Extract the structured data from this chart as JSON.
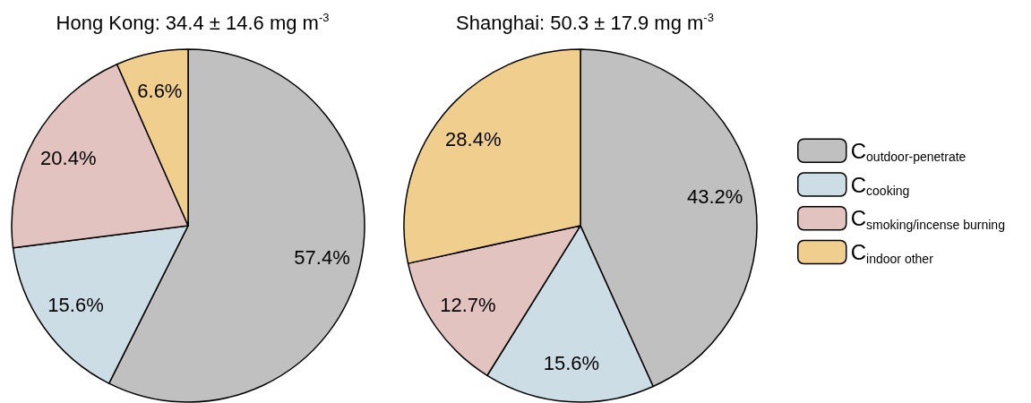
{
  "chart_data": {
    "type": "pie",
    "categories": [
      "C$_{outdoor-penetrate}$",
      "C$_{cooking}$",
      "C$_{smoking/incense burning}$",
      "C$_{indoor other}$"
    ],
    "colors": [
      "#c0c0c0",
      "#cddde5",
      "#e2c3bf",
      "#f0cf8e"
    ],
    "legend": "right",
    "series": [
      {
        "name": "Hong Kong: 34.4 ± 14.6 mg m$^{-3}$",
        "values": [
          57.4,
          15.6,
          20.4,
          6.6
        ],
        "value_labels": [
          "57.4%",
          "15.6%",
          "20.4%",
          "6.6%"
        ]
      },
      {
        "name": "Shanghai: 50.3 ± 17.9 mg m$^{-3}$",
        "values": [
          43.2,
          15.6,
          12.7,
          28.4
        ],
        "value_labels": [
          "43.2%",
          "15.6%",
          "12.7%",
          "28.4%"
        ]
      }
    ]
  }
}
